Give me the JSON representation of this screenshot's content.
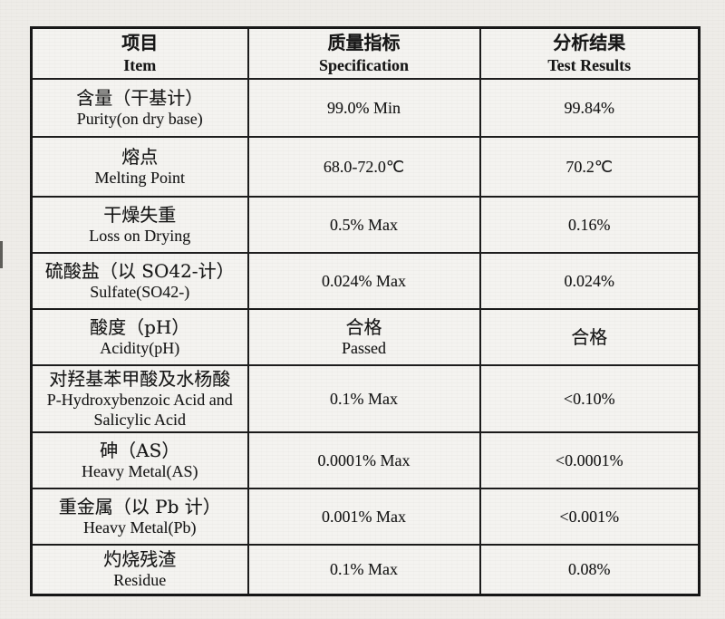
{
  "colors": {
    "paper": "#eeece8",
    "cell": "#f4f3f0",
    "ink": "#161616",
    "border": "#1b1b1b"
  },
  "table": {
    "header": {
      "item": {
        "zh": "项目",
        "en": "Item"
      },
      "specification": {
        "zh": "质量指标",
        "en": "Specification"
      },
      "test_results": {
        "zh": "分析结果",
        "en": "Test Results"
      }
    },
    "rows": [
      {
        "item_lines": [
          "含量（干基计）",
          "Purity(on dry base)"
        ],
        "spec_lines": [
          "99.0% Min"
        ],
        "result_lines": [
          "99.84%"
        ]
      },
      {
        "item_lines": [
          "熔点",
          "Melting Point"
        ],
        "spec_lines": [
          "68.0-72.0℃"
        ],
        "result_lines": [
          "70.2℃"
        ]
      },
      {
        "item_lines": [
          "干燥失重",
          "Loss on Drying"
        ],
        "spec_lines": [
          "0.5% Max"
        ],
        "result_lines": [
          "0.16%"
        ]
      },
      {
        "item_lines": [
          "硫酸盐（以 SO42-计）",
          "Sulfate(SO42-)"
        ],
        "spec_lines": [
          "0.024% Max"
        ],
        "result_lines": [
          "0.024%"
        ]
      },
      {
        "item_lines": [
          "酸度（pH）",
          "Acidity(pH)"
        ],
        "spec_lines": [
          "合格",
          "Passed"
        ],
        "result_lines": [
          "合格"
        ]
      },
      {
        "item_lines": [
          "对羟基苯甲酸及水杨酸",
          "P-Hydroxybenzoic Acid and",
          "Salicylic Acid"
        ],
        "spec_lines": [
          "0.1% Max"
        ],
        "result_lines": [
          "<0.10%"
        ]
      },
      {
        "item_lines": [
          "砷（AS）",
          "Heavy Metal(AS)"
        ],
        "spec_lines": [
          "0.0001% Max"
        ],
        "result_lines": [
          "<0.0001%"
        ]
      },
      {
        "item_lines": [
          "重金属（以 Pb 计）",
          "Heavy Metal(Pb)"
        ],
        "spec_lines": [
          "0.001% Max"
        ],
        "result_lines": [
          "<0.001%"
        ]
      },
      {
        "item_lines": [
          "灼烧残渣",
          "Residue"
        ],
        "spec_lines": [
          "0.1% Max"
        ],
        "result_lines": [
          "0.08%"
        ]
      }
    ]
  }
}
